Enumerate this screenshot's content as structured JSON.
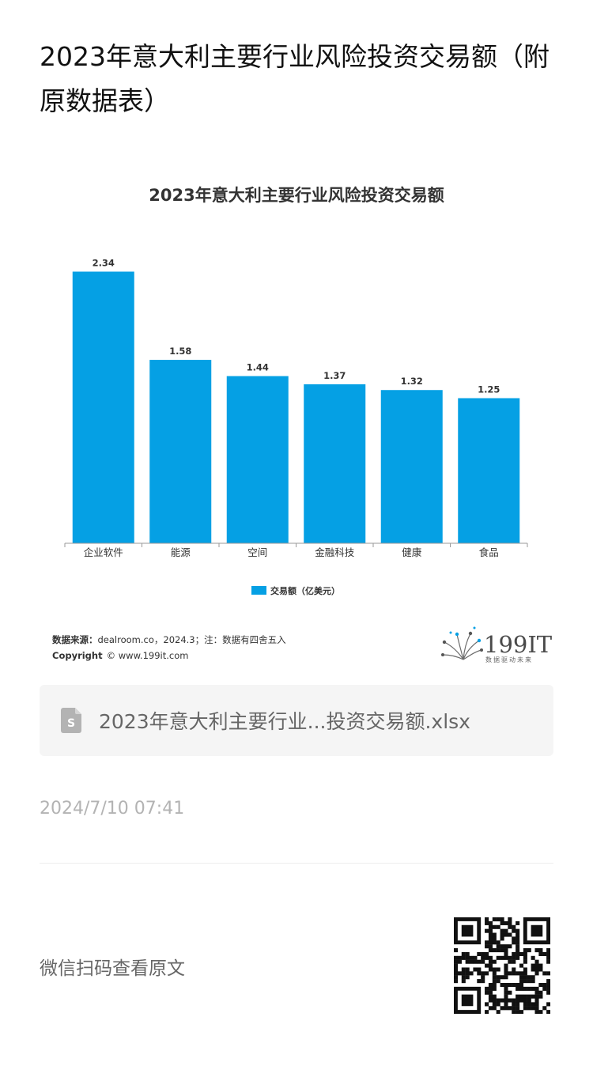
{
  "article": {
    "title": "2023年意大利主要行业风险投资交易额（附原数据表）"
  },
  "chart_data": {
    "type": "bar",
    "title": "2023年意大利主要行业风险投资交易额",
    "categories": [
      "企业软件",
      "能源",
      "空间",
      "金融科技",
      "健康",
      "食品"
    ],
    "series": [
      {
        "name": "交易额（亿美元）",
        "values": [
          2.34,
          1.58,
          1.44,
          1.37,
          1.32,
          1.25
        ]
      }
    ],
    "value_labels": [
      "2.34",
      "1.58",
      "1.44",
      "1.37",
      "1.32",
      "1.25"
    ],
    "ylim": [
      0,
      2.5
    ],
    "grid": false,
    "legend_position": "bottom-center",
    "bar_color": "#05a0e4"
  },
  "source": {
    "label": "数据来源：",
    "text": "dealroom.co，2024.3；注：数据有四舍五入",
    "copyright_label": "Copyright",
    "copyright_text": "© www.199it.com"
  },
  "logo": {
    "name": "199IT",
    "tagline": "数据驱动未来"
  },
  "attachment": {
    "file_name": "2023年意大利主要行业...投资交易额.xlsx",
    "icon": "spreadsheet-file-icon",
    "icon_color": "#b3b3b3"
  },
  "meta": {
    "publish_time": "2024/7/10 07:41"
  },
  "footer": {
    "qr_prompt": "微信扫码查看原文",
    "qr_icon": "qr-code-icon"
  }
}
